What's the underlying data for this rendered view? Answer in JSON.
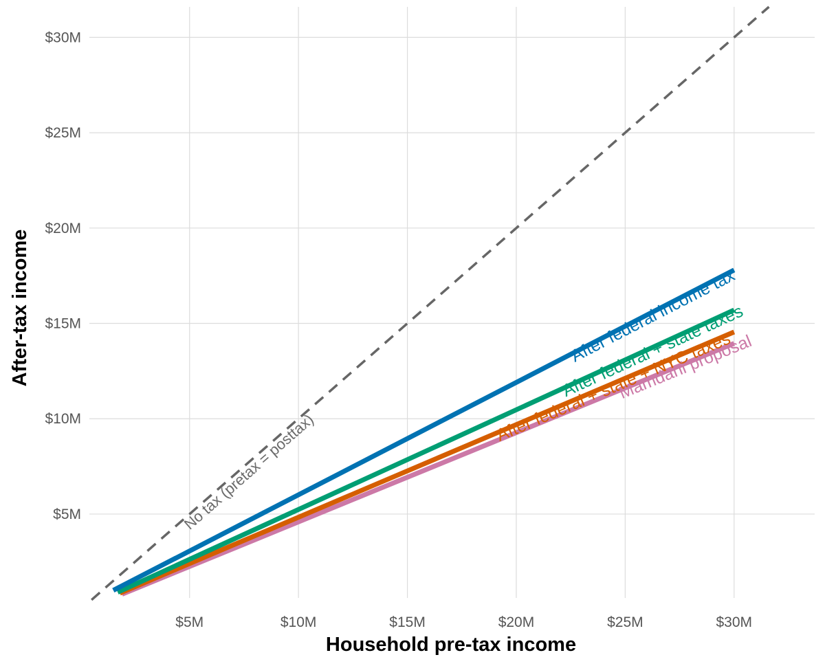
{
  "chart_data": {
    "type": "line",
    "title": "",
    "xlabel": "Household pre-tax income",
    "ylabel": "After-tax income",
    "xlim": [
      0.4,
      33.7
    ],
    "ylim": [
      0.6,
      31.6
    ],
    "x_ticks": [
      {
        "value": 5,
        "label": "$5M"
      },
      {
        "value": 10,
        "label": "$10M"
      },
      {
        "value": 15,
        "label": "$15M"
      },
      {
        "value": 20,
        "label": "$20M"
      },
      {
        "value": 25,
        "label": "$25M"
      },
      {
        "value": 30,
        "label": "$30M"
      }
    ],
    "y_ticks": [
      {
        "value": 5,
        "label": "$5M"
      },
      {
        "value": 10,
        "label": "$10M"
      },
      {
        "value": 15,
        "label": "$15M"
      },
      {
        "value": 20,
        "label": "$20M"
      },
      {
        "value": 25,
        "label": "$25M"
      },
      {
        "value": 30,
        "label": "$30M"
      }
    ],
    "grid": true,
    "legend": "none (direct labels)",
    "reference_line": {
      "name": "No tax (pretax = posttax)",
      "x": [
        0.5,
        31.6
      ],
      "y": [
        0.5,
        31.6
      ],
      "color": "#666666",
      "style": "dashed",
      "label_x": 7.5
    },
    "series": [
      {
        "name": "After federal income tax",
        "x": [
          1.5,
          30
        ],
        "y": [
          1.0,
          17.8
        ],
        "color": "#0072B2",
        "label_x": 26.2
      },
      {
        "name": "After federal + state taxes",
        "x": [
          1.7,
          30
        ],
        "y": [
          0.9,
          15.7
        ],
        "color": "#009E73",
        "label_x": 26.2
      },
      {
        "name": "After federal + state + NYC taxes",
        "x": [
          1.8,
          30
        ],
        "y": [
          0.85,
          14.55
        ],
        "color": "#D55E00",
        "label_x": 24.4
      },
      {
        "name": "Mamdani proposal",
        "x": [
          1.9,
          30
        ],
        "y": [
          0.8,
          13.95
        ],
        "color": "#CC79A7",
        "label_x": 27.7
      }
    ]
  }
}
